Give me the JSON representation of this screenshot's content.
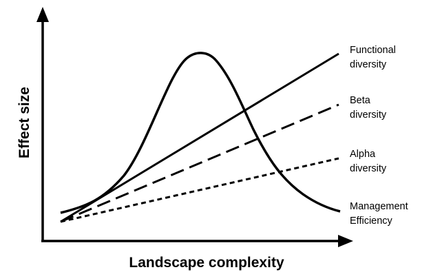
{
  "axes": {
    "y_label": "Effect size",
    "x_label": "Landscape complexity"
  },
  "curves": [
    {
      "id": "functional",
      "label_lines": [
        "Functional",
        "diversity"
      ],
      "style": "solid"
    },
    {
      "id": "beta",
      "label_lines": [
        "Beta",
        "diversity"
      ],
      "style": "long-dash"
    },
    {
      "id": "alpha",
      "label_lines": [
        "Alpha",
        "diversity"
      ],
      "style": "short-dash"
    },
    {
      "id": "management",
      "label_lines": [
        "Management",
        "Efficiency"
      ],
      "style": "solid"
    }
  ],
  "colors": {
    "ink": "#000000",
    "background": "#ffffff"
  }
}
